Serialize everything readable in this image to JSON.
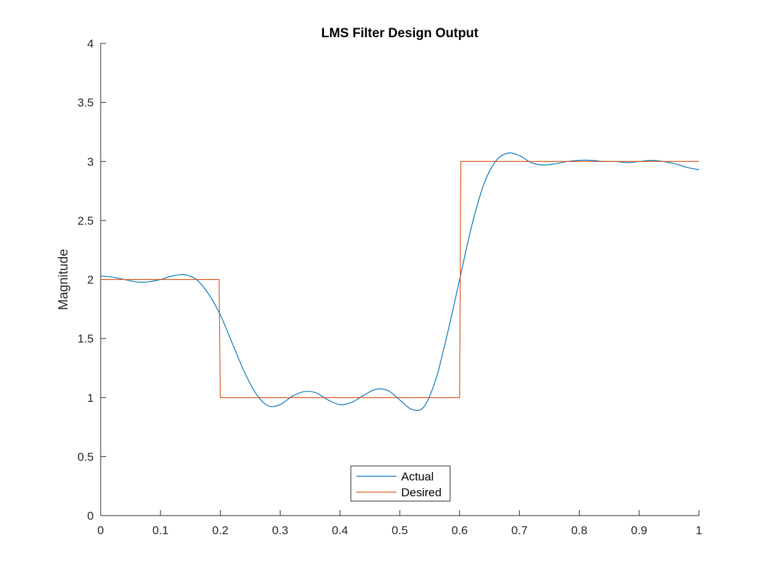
{
  "chart_data": {
    "type": "line",
    "title": "LMS Filter Design Output",
    "xlabel": "",
    "ylabel": "Magnitude",
    "xlim": [
      0,
      1
    ],
    "ylim": [
      0,
      4
    ],
    "xticks": [
      0,
      0.1,
      0.2,
      0.3,
      0.4,
      0.5,
      0.6,
      0.7,
      0.8,
      0.9,
      1
    ],
    "xtick_labels": [
      "0",
      "0.1",
      "0.2",
      "0.3",
      "0.4",
      "0.5",
      "0.6",
      "0.7",
      "0.8",
      "0.9",
      "1"
    ],
    "yticks": [
      0,
      0.5,
      1,
      1.5,
      2,
      2.5,
      3,
      3.5,
      4
    ],
    "ytick_labels": [
      "0",
      "0.5",
      "1",
      "1.5",
      "2",
      "2.5",
      "3",
      "3.5",
      "4"
    ],
    "grid": false,
    "legend_position": "bottom-center",
    "series": [
      {
        "name": "Actual",
        "color": "#0072BD",
        "x": [
          0,
          0.02,
          0.04,
          0.06,
          0.08,
          0.1,
          0.12,
          0.14,
          0.16,
          0.18,
          0.2,
          0.22,
          0.24,
          0.26,
          0.28,
          0.3,
          0.32,
          0.34,
          0.36,
          0.38,
          0.4,
          0.42,
          0.44,
          0.46,
          0.48,
          0.5,
          0.52,
          0.54,
          0.56,
          0.58,
          0.6,
          0.62,
          0.64,
          0.66,
          0.68,
          0.7,
          0.72,
          0.74,
          0.76,
          0.78,
          0.8,
          0.82,
          0.84,
          0.86,
          0.88,
          0.9,
          0.92,
          0.94,
          0.96,
          0.98,
          1
        ],
        "y": [
          2.03,
          2.02,
          2.0,
          1.98,
          1.98,
          2.0,
          2.03,
          2.04,
          2.0,
          1.88,
          1.7,
          1.46,
          1.22,
          1.03,
          0.93,
          0.94,
          1.01,
          1.05,
          1.04,
          0.98,
          0.94,
          0.96,
          1.02,
          1.07,
          1.06,
          0.98,
          0.9,
          0.92,
          1.15,
          1.55,
          2.0,
          2.45,
          2.8,
          3.0,
          3.07,
          3.05,
          2.99,
          2.97,
          2.98,
          3.0,
          3.01,
          3.01,
          3.0,
          3.0,
          2.99,
          3.0,
          3.01,
          3.0,
          2.98,
          2.95,
          2.93
        ]
      },
      {
        "name": "Desired",
        "color": "#D95319",
        "x": [
          0,
          0.198,
          0.2,
          0.6,
          0.602,
          1
        ],
        "y": [
          2,
          2,
          1,
          1,
          3,
          3
        ]
      }
    ]
  }
}
